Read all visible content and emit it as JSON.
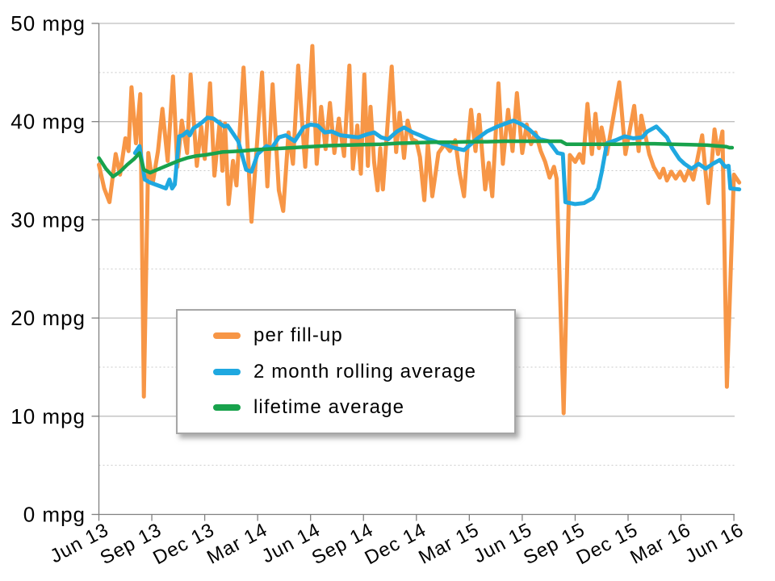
{
  "legend": {
    "position": "middle-left",
    "items": [
      {
        "label": "per fill-up",
        "color": "#F79646"
      },
      {
        "label": "2 month rolling average",
        "color": "#1FA8E0"
      },
      {
        "label": "lifetime average",
        "color": "#18A24C"
      }
    ]
  },
  "style": {
    "axis_color": "#808080",
    "major_grid_color": "#bfbfbf",
    "minor_grid_color": "#c9c9c9",
    "label_color": "#000000"
  },
  "chart_data": {
    "type": "line",
    "title": "",
    "xlabel": "",
    "ylabel": "",
    "unit": "mpg",
    "grid": "horizontal-only",
    "legend_position": "middle-left",
    "y_axis": {
      "min": 0,
      "max": 50,
      "major_step": 10,
      "minor_step": 5,
      "minor_grid_dashed": true,
      "tick_labels": [
        "0 mpg",
        "10 mpg",
        "20 mpg",
        "30 mpg",
        "40 mpg",
        "50 mpg"
      ]
    },
    "x_axis": {
      "unit": "months since Jun 2013",
      "min": 0,
      "max": 36.4,
      "tick_step_months": 3,
      "tick_labels": [
        "Jun 13",
        "Sep 13",
        "Dec 13",
        "Mar 14",
        "Jun 14",
        "Sep 14",
        "Dec 14",
        "Mar 15",
        "Jun 15",
        "Sep 15",
        "Dec 15",
        "Mar 16",
        "Jun 16"
      ],
      "label_rotation_deg": -28
    },
    "series": [
      {
        "name": "per fill-up",
        "color": "#F79646",
        "width": 5,
        "points": [
          [
            0,
            35.6
          ],
          [
            0.3,
            33.2
          ],
          [
            0.6,
            31.8
          ],
          [
            0.95,
            36.7
          ],
          [
            1.2,
            34.6
          ],
          [
            1.5,
            38.3
          ],
          [
            1.68,
            37
          ],
          [
            1.85,
            43.5
          ],
          [
            2.1,
            37.8
          ],
          [
            2.35,
            42.8
          ],
          [
            2.55,
            12
          ],
          [
            2.8,
            36.8
          ],
          [
            3.05,
            33.7
          ],
          [
            3.35,
            37
          ],
          [
            3.6,
            41.3
          ],
          [
            3.9,
            36
          ],
          [
            4.2,
            44.6
          ],
          [
            4.45,
            35.4
          ],
          [
            4.7,
            40.1
          ],
          [
            5,
            36.8
          ],
          [
            5.2,
            44.8
          ],
          [
            5.55,
            35.5
          ],
          [
            5.8,
            39.5
          ],
          [
            6,
            36.2
          ],
          [
            6.3,
            43.9
          ],
          [
            6.55,
            34.5
          ],
          [
            6.85,
            40
          ],
          [
            7,
            35
          ],
          [
            7.15,
            39.8
          ],
          [
            7.35,
            31.6
          ],
          [
            7.6,
            36
          ],
          [
            7.8,
            33.5
          ],
          [
            8.2,
            45.5
          ],
          [
            8.65,
            29.8
          ],
          [
            9.25,
            45
          ],
          [
            9.55,
            33.4
          ],
          [
            9.85,
            43.8
          ],
          [
            10.2,
            33
          ],
          [
            10.45,
            30.9
          ],
          [
            10.75,
            38.9
          ],
          [
            11,
            35.7
          ],
          [
            11.3,
            45.7
          ],
          [
            11.7,
            35.4
          ],
          [
            12.1,
            47.7
          ],
          [
            12.35,
            35.7
          ],
          [
            12.6,
            41.5
          ],
          [
            12.85,
            37.2
          ],
          [
            13.1,
            41.9
          ],
          [
            13.35,
            36.8
          ],
          [
            13.6,
            40.3
          ],
          [
            13.9,
            36.5
          ],
          [
            14.2,
            45.7
          ],
          [
            14.4,
            35.2
          ],
          [
            14.65,
            39.6
          ],
          [
            14.85,
            34.7
          ],
          [
            15.05,
            44.8
          ],
          [
            15.25,
            35.5
          ],
          [
            15.4,
            41.5
          ],
          [
            15.6,
            35.9
          ],
          [
            15.8,
            33
          ],
          [
            15.95,
            37.3
          ],
          [
            16.1,
            33.1
          ],
          [
            16.6,
            45.6
          ],
          [
            16.85,
            36.9
          ],
          [
            17.05,
            40.9
          ],
          [
            17.3,
            36.3
          ],
          [
            17.5,
            40.1
          ],
          [
            17.75,
            38.2
          ],
          [
            18,
            38
          ],
          [
            18.2,
            36.4
          ],
          [
            18.45,
            32
          ],
          [
            18.65,
            37.8
          ],
          [
            18.9,
            32.4
          ],
          [
            19.25,
            36.8
          ],
          [
            19.6,
            37.7
          ],
          [
            19.9,
            37
          ],
          [
            20.2,
            38.1
          ],
          [
            20.45,
            34.8
          ],
          [
            20.7,
            32.4
          ],
          [
            20.9,
            37.5
          ],
          [
            21.1,
            41.2
          ],
          [
            21.35,
            37
          ],
          [
            21.55,
            40.7
          ],
          [
            21.9,
            33.1
          ],
          [
            22.1,
            35.8
          ],
          [
            22.3,
            32.4
          ],
          [
            22.65,
            43.9
          ],
          [
            22.9,
            35.7
          ],
          [
            23.2,
            41.2
          ],
          [
            23.45,
            37
          ],
          [
            23.7,
            42.9
          ],
          [
            24,
            36.8
          ],
          [
            24.25,
            39.7
          ],
          [
            24.5,
            37.7
          ],
          [
            24.75,
            38.9
          ],
          [
            25.05,
            37
          ],
          [
            25.3,
            35.9
          ],
          [
            25.55,
            34.3
          ],
          [
            25.8,
            35.4
          ],
          [
            25.95,
            34.2
          ],
          [
            26.35,
            10.3
          ],
          [
            26.7,
            36.6
          ],
          [
            27,
            35.9
          ],
          [
            27.25,
            36.7
          ],
          [
            27.45,
            35.8
          ],
          [
            27.7,
            41.8
          ],
          [
            27.95,
            36.7
          ],
          [
            28.15,
            40.8
          ],
          [
            28.35,
            37.3
          ],
          [
            28.5,
            39.4
          ],
          [
            28.8,
            36.7
          ],
          [
            29.5,
            44
          ],
          [
            29.85,
            36.7
          ],
          [
            30.35,
            41.6
          ],
          [
            30.6,
            37
          ],
          [
            30.75,
            40.6
          ],
          [
            31.2,
            36.7
          ],
          [
            31.45,
            35.4
          ],
          [
            31.8,
            34.3
          ],
          [
            32,
            35.2
          ],
          [
            32.2,
            34
          ],
          [
            32.45,
            34.9
          ],
          [
            32.7,
            34.2
          ],
          [
            32.95,
            34.9
          ],
          [
            33.2,
            34
          ],
          [
            33.45,
            35.1
          ],
          [
            33.7,
            34.1
          ],
          [
            34.2,
            38.6
          ],
          [
            34.55,
            31.7
          ],
          [
            34.9,
            39.2
          ],
          [
            35.1,
            36.7
          ],
          [
            35.35,
            39
          ],
          [
            35.6,
            13
          ],
          [
            36,
            34.6
          ],
          [
            36.3,
            33.8
          ]
        ]
      },
      {
        "name": "2 month rolling average",
        "color": "#1FA8E0",
        "width": 5,
        "points": [
          [
            2.05,
            36.8
          ],
          [
            2.3,
            37.5
          ],
          [
            2.6,
            34.1
          ],
          [
            2.9,
            33.8
          ],
          [
            3.2,
            33.6
          ],
          [
            3.5,
            33.4
          ],
          [
            3.8,
            33.2
          ],
          [
            4,
            34.1
          ],
          [
            4.15,
            33.2
          ],
          [
            4.3,
            33.6
          ],
          [
            4.55,
            38.5
          ],
          [
            4.75,
            38.6
          ],
          [
            5,
            39
          ],
          [
            5.15,
            38.6
          ],
          [
            5.35,
            39.3
          ],
          [
            5.6,
            39.6
          ],
          [
            5.9,
            40
          ],
          [
            6.15,
            40.4
          ],
          [
            6.5,
            40.3
          ],
          [
            6.8,
            39.9
          ],
          [
            7.1,
            39.5
          ],
          [
            7.3,
            39.6
          ],
          [
            7.6,
            38.8
          ],
          [
            7.9,
            38
          ],
          [
            8.35,
            35.1
          ],
          [
            8.65,
            34.9
          ],
          [
            9,
            36.7
          ],
          [
            9.5,
            37.5
          ],
          [
            9.8,
            37.3
          ],
          [
            10.2,
            38.4
          ],
          [
            10.6,
            38.6
          ],
          [
            11.1,
            38
          ],
          [
            11.6,
            39.4
          ],
          [
            12,
            39.7
          ],
          [
            12.4,
            39.6
          ],
          [
            12.8,
            38.9
          ],
          [
            13.2,
            39
          ],
          [
            13.7,
            38.6
          ],
          [
            14.2,
            38.5
          ],
          [
            14.7,
            38.4
          ],
          [
            15.2,
            38.7
          ],
          [
            15.6,
            38.9
          ],
          [
            16,
            38.4
          ],
          [
            16.4,
            38.2
          ],
          [
            16.9,
            39
          ],
          [
            17.3,
            39.4
          ],
          [
            17.8,
            38.9
          ],
          [
            18.2,
            38.6
          ],
          [
            18.7,
            38.2
          ],
          [
            19.2,
            37.9
          ],
          [
            19.7,
            37.6
          ],
          [
            20.2,
            37.3
          ],
          [
            20.7,
            37.1
          ],
          [
            21.4,
            38.2
          ],
          [
            22,
            39
          ],
          [
            22.6,
            39.5
          ],
          [
            23.2,
            39.9
          ],
          [
            23.5,
            40.1
          ],
          [
            24,
            39.7
          ],
          [
            24.4,
            39.2
          ],
          [
            25,
            38.2
          ],
          [
            25.5,
            38
          ],
          [
            26,
            36.8
          ],
          [
            26.3,
            36.7
          ],
          [
            26.45,
            31.8
          ],
          [
            27,
            31.6
          ],
          [
            27.5,
            31.7
          ],
          [
            28,
            32.2
          ],
          [
            28.3,
            33.2
          ],
          [
            28.5,
            34.8
          ],
          [
            28.8,
            37.8
          ],
          [
            29.3,
            38.1
          ],
          [
            29.8,
            38.5
          ],
          [
            30.3,
            38.3
          ],
          [
            30.8,
            38.4
          ],
          [
            31.1,
            39
          ],
          [
            31.6,
            39.5
          ],
          [
            32.2,
            38.4
          ],
          [
            32.5,
            37.3
          ],
          [
            32.9,
            36.2
          ],
          [
            33.2,
            35.7
          ],
          [
            33.6,
            35.2
          ],
          [
            34,
            35.7
          ],
          [
            34.4,
            35.2
          ],
          [
            34.8,
            35.7
          ],
          [
            35.2,
            36.1
          ],
          [
            35.5,
            35.4
          ],
          [
            35.7,
            35.5
          ],
          [
            35.8,
            33.2
          ],
          [
            36.3,
            33.1
          ]
        ]
      },
      {
        "name": "lifetime average",
        "color": "#18A24C",
        "width": 4.5,
        "points": [
          [
            0,
            36.3
          ],
          [
            0.4,
            35.2
          ],
          [
            0.8,
            34.4
          ],
          [
            1.2,
            34.9
          ],
          [
            1.6,
            35.6
          ],
          [
            2,
            36.2
          ],
          [
            2.3,
            36.8
          ],
          [
            2.55,
            35.1
          ],
          [
            2.9,
            34.8
          ],
          [
            3.3,
            35.1
          ],
          [
            3.7,
            35.4
          ],
          [
            4.1,
            35.7
          ],
          [
            4.5,
            36
          ],
          [
            5,
            36.3
          ],
          [
            5.5,
            36.5
          ],
          [
            6,
            36.6
          ],
          [
            6.5,
            36.75
          ],
          [
            7,
            36.9
          ],
          [
            8,
            37
          ],
          [
            9,
            37.15
          ],
          [
            10,
            37.25
          ],
          [
            11,
            37.35
          ],
          [
            12,
            37.45
          ],
          [
            13,
            37.55
          ],
          [
            14,
            37.6
          ],
          [
            15,
            37.65
          ],
          [
            16,
            37.7
          ],
          [
            17,
            37.8
          ],
          [
            18,
            37.85
          ],
          [
            19,
            37.9
          ],
          [
            20,
            37.9
          ],
          [
            21,
            37.95
          ],
          [
            22,
            37.95
          ],
          [
            23,
            38
          ],
          [
            24,
            38
          ],
          [
            25,
            38
          ],
          [
            26.2,
            38
          ],
          [
            26.5,
            37.7
          ],
          [
            27.5,
            37.7
          ],
          [
            28.5,
            37.7
          ],
          [
            29.5,
            37.7
          ],
          [
            30.5,
            37.75
          ],
          [
            31.5,
            37.75
          ],
          [
            32.5,
            37.7
          ],
          [
            33.5,
            37.65
          ],
          [
            34.5,
            37.6
          ],
          [
            35.2,
            37.5
          ],
          [
            35.55,
            37.45
          ],
          [
            35.75,
            37.35
          ],
          [
            35.9,
            37.35
          ]
        ]
      }
    ]
  }
}
